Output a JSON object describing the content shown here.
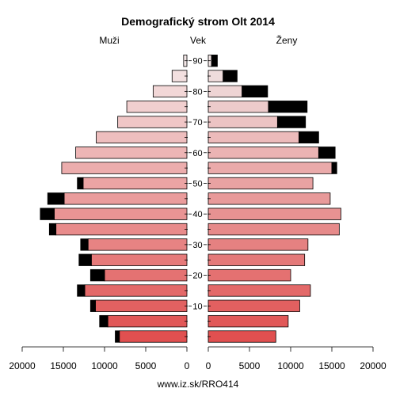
{
  "chart_data": {
    "type": "bar",
    "title": "Demografický strom Olt 2014",
    "left_label": "Muži",
    "center_label": "Vek",
    "right_label": "Ženy",
    "footer": "www.iz.sk/RRO414",
    "xlim": [
      0,
      20000
    ],
    "x_ticks": [
      20000,
      15000,
      10000,
      5000,
      0
    ],
    "right_x_ticks": [
      0,
      5000,
      10000,
      15000,
      20000
    ],
    "age_ticks": [
      10,
      20,
      30,
      40,
      50,
      60,
      70,
      80,
      90
    ],
    "age_groups": [
      "0-4",
      "5-9",
      "10-14",
      "15-19",
      "20-24",
      "25-29",
      "30-34",
      "35-39",
      "40-44",
      "45-49",
      "50-54",
      "55-59",
      "60-64",
      "65-69",
      "70-74",
      "75-79",
      "80-84",
      "85-89",
      "90+"
    ],
    "male": {
      "values": [
        8200,
        9600,
        11100,
        12400,
        10000,
        11600,
        12000,
        15900,
        16100,
        14900,
        12600,
        15200,
        13500,
        11000,
        8400,
        7300,
        4100,
        1800,
        400
      ],
      "excess": [
        500,
        1000,
        600,
        900,
        1700,
        1500,
        900,
        800,
        1700,
        2000,
        700,
        0,
        0,
        0,
        0,
        0,
        0,
        0,
        0
      ]
    },
    "female": {
      "values": [
        8200,
        9700,
        11100,
        12400,
        10000,
        11700,
        12100,
        15900,
        16100,
        14800,
        12700,
        15000,
        13400,
        11000,
        8400,
        7300,
        4100,
        1800,
        400
      ],
      "excess": [
        0,
        0,
        0,
        0,
        0,
        0,
        0,
        0,
        0,
        0,
        0,
        600,
        2000,
        2400,
        3400,
        4700,
        3100,
        1700,
        700
      ]
    },
    "colors": {
      "excess": "#000000",
      "outline": "#000000",
      "bar_bottom": "#e05050",
      "bar_top": "#f4e8e8",
      "female_bottom": "#e05050",
      "female_top": "#f0e4e4"
    }
  }
}
